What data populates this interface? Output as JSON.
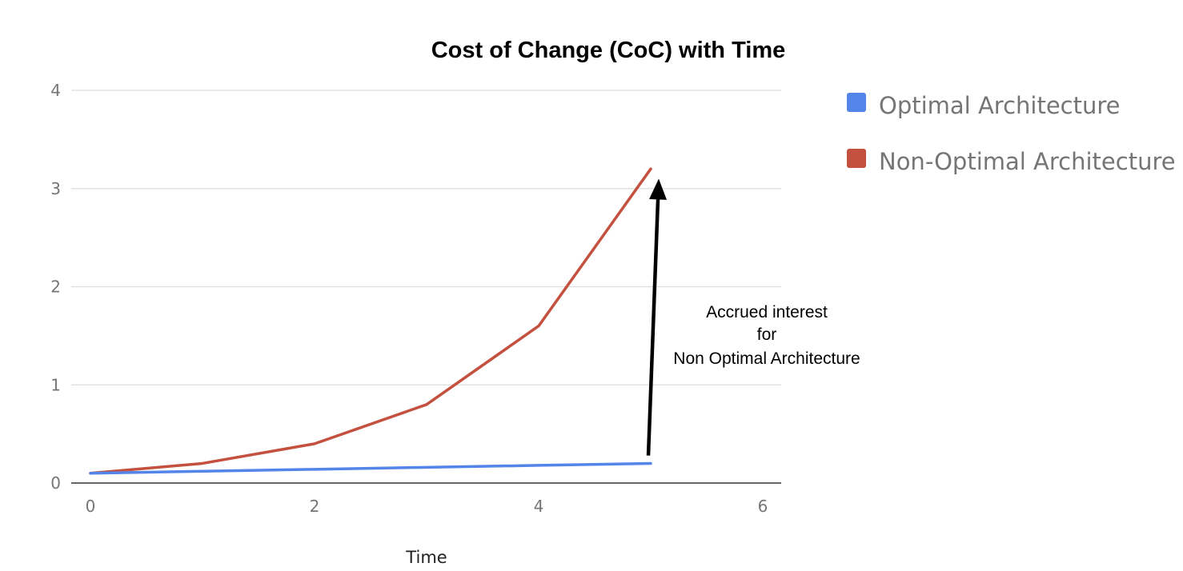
{
  "chart_data": {
    "type": "line",
    "title": "Cost of Change (CoC) with Time",
    "xlabel": "Time",
    "ylabel": "",
    "xlim": [
      0,
      6
    ],
    "ylim": [
      0,
      4
    ],
    "x_ticks": [
      0,
      2,
      4,
      6
    ],
    "y_ticks": [
      0,
      1,
      2,
      3,
      4
    ],
    "grid": true,
    "legend_position": "right",
    "x": [
      0,
      1,
      2,
      3,
      4,
      5
    ],
    "series": [
      {
        "name": "Optimal Architecture",
        "color": "#5384e8",
        "values": [
          0.1,
          0.12,
          0.14,
          0.16,
          0.18,
          0.2
        ]
      },
      {
        "name": "Non-Optimal Architecture",
        "color": "#c4503f",
        "values": [
          0.1,
          0.2,
          0.4,
          0.8,
          1.6,
          3.2
        ]
      }
    ],
    "annotation": {
      "lines": [
        "Accrued interest",
        "for",
        "Non Optimal Architecture"
      ],
      "arrow_from": [
        5,
        0.28
      ],
      "arrow_to": [
        5.05,
        3.1
      ],
      "color": "#000000"
    }
  }
}
